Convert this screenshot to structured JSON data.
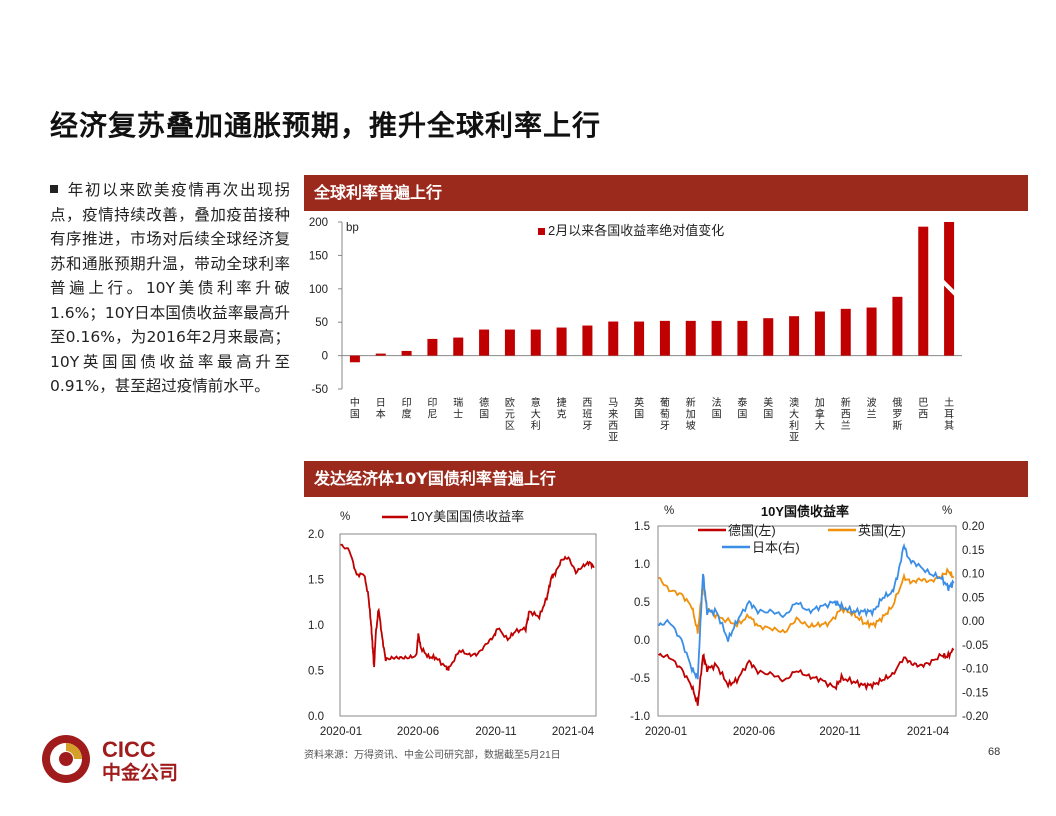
{
  "slide": {
    "title": "经济复苏叠加通胀预期，推升全球利率上行",
    "bullet": "年初以来欧美疫情再次出现拐点，疫情持续改善，叠加疫苗接种有序推进，市场对后续全球经济复苏和通胀预期升温，带动全球利率普遍上行。10Y美债利率升破1.6%；10Y日本国债收益率最高升至0.16%，为2016年2月来最高；10Y英国国债收益率最高升至0.91%，甚至超过疫情前水平。",
    "section1": "全球利率普遍上行",
    "section2": "发达经济体10Y国债利率普遍上行",
    "source": "资料来源：万得资讯、中金公司研究部，数据截至5月21日",
    "page_number": "68",
    "logo_text_en": "CICC",
    "logo_text_cn": "中金公司",
    "colors": {
      "band": "#9b2a1d",
      "bar": "#c00000",
      "de": "#c00000",
      "uk": "#f0900b",
      "jp": "#3a8ee6",
      "logo": "#a01c1c"
    }
  },
  "chart_data": [
    {
      "type": "bar",
      "unit": "bp",
      "legend": "2月以来各国收益率绝对值变化",
      "categories": [
        "中国",
        "日本",
        "印度",
        "印尼",
        "瑞士",
        "德国",
        "欧元区",
        "意大利",
        "捷克",
        "西班牙",
        "马来西亚",
        "英国",
        "葡萄牙",
        "新加坡",
        "法国",
        "泰国",
        "美国",
        "澳大利亚",
        "加拿大",
        "新西兰",
        "波兰",
        "俄罗斯",
        "巴西",
        "土耳其"
      ],
      "values": [
        -10,
        3,
        7,
        25,
        27,
        39,
        39,
        39,
        42,
        45,
        51,
        51,
        52,
        52,
        52,
        52,
        56,
        59,
        66,
        70,
        72,
        88,
        193,
        200
      ],
      "ylim": [
        -50,
        200
      ],
      "yticks": [
        -50,
        0,
        50,
        100,
        150,
        200
      ],
      "broken_bar": "土耳其"
    },
    {
      "type": "line",
      "unit": "%",
      "series": [
        {
          "name": "10Y美国国债收益率"
        }
      ],
      "ylim": [
        0,
        2
      ],
      "yticks": [
        "0.0",
        "0.5",
        "1.0",
        "1.5",
        "2.0"
      ],
      "xticks": [
        "2020-01",
        "2020-06",
        "2020-11",
        "2021-04"
      ],
      "points": [
        [
          "2020-01-02",
          1.88
        ],
        [
          "2020-01-20",
          1.82
        ],
        [
          "2020-02-03",
          1.55
        ],
        [
          "2020-02-18",
          1.56
        ],
        [
          "2020-02-27",
          1.3
        ],
        [
          "2020-03-03",
          1.0
        ],
        [
          "2020-03-06",
          0.77
        ],
        [
          "2020-03-09",
          0.54
        ],
        [
          "2020-03-12",
          0.88
        ],
        [
          "2020-03-18",
          1.18
        ],
        [
          "2020-03-25",
          0.86
        ],
        [
          "2020-04-01",
          0.62
        ],
        [
          "2020-04-15",
          0.64
        ],
        [
          "2020-04-30",
          0.64
        ],
        [
          "2020-05-15",
          0.64
        ],
        [
          "2020-06-01",
          0.66
        ],
        [
          "2020-06-05",
          0.9
        ],
        [
          "2020-06-10",
          0.75
        ],
        [
          "2020-06-25",
          0.65
        ],
        [
          "2020-07-10",
          0.64
        ],
        [
          "2020-07-31",
          0.53
        ],
        [
          "2020-08-05",
          0.52
        ],
        [
          "2020-08-26",
          0.72
        ],
        [
          "2020-09-15",
          0.67
        ],
        [
          "2020-10-01",
          0.68
        ],
        [
          "2020-10-20",
          0.8
        ],
        [
          "2020-11-03",
          0.88
        ],
        [
          "2020-11-10",
          0.97
        ],
        [
          "2020-11-30",
          0.84
        ],
        [
          "2020-12-15",
          0.93
        ],
        [
          "2021-01-05",
          0.96
        ],
        [
          "2021-01-12",
          1.15
        ],
        [
          "2021-02-01",
          1.09
        ],
        [
          "2021-02-16",
          1.3
        ],
        [
          "2021-02-25",
          1.52
        ],
        [
          "2021-03-05",
          1.57
        ],
        [
          "2021-03-18",
          1.72
        ],
        [
          "2021-03-31",
          1.74
        ],
        [
          "2021-04-15",
          1.58
        ],
        [
          "2021-04-30",
          1.65
        ],
        [
          "2021-05-12",
          1.69
        ],
        [
          "2021-05-21",
          1.63
        ]
      ]
    },
    {
      "type": "line",
      "title": "10Y国债收益率",
      "unit_left": "%",
      "unit_right": "%",
      "ylim_left": [
        -1.0,
        1.5
      ],
      "ylim_right": [
        -0.2,
        0.2
      ],
      "yticks_left": [
        "-1.0",
        "-0.5",
        "0.0",
        "0.5",
        "1.0",
        "1.5"
      ],
      "yticks_right": [
        "-0.20",
        "-0.15",
        "-0.10",
        "-0.05",
        "0.00",
        "0.05",
        "0.10",
        "0.15",
        "0.20"
      ],
      "xticks": [
        "2020-01",
        "2020-06",
        "2020-11",
        "2021-04"
      ],
      "series": [
        {
          "name": "德国(左)",
          "axis": "left",
          "points": [
            [
              "2020-01-02",
              -0.2
            ],
            [
              "2020-01-20",
              -0.22
            ],
            [
              "2020-02-10",
              -0.38
            ],
            [
              "2020-02-28",
              -0.61
            ],
            [
              "2020-03-09",
              -0.85
            ],
            [
              "2020-03-18",
              -0.2
            ],
            [
              "2020-03-25",
              -0.38
            ],
            [
              "2020-04-10",
              -0.33
            ],
            [
              "2020-04-30",
              -0.59
            ],
            [
              "2020-05-15",
              -0.53
            ],
            [
              "2020-06-05",
              -0.28
            ],
            [
              "2020-06-20",
              -0.42
            ],
            [
              "2020-07-15",
              -0.45
            ],
            [
              "2020-08-04",
              -0.54
            ],
            [
              "2020-08-25",
              -0.4
            ],
            [
              "2020-09-15",
              -0.48
            ],
            [
              "2020-10-05",
              -0.52
            ],
            [
              "2020-10-30",
              -0.63
            ],
            [
              "2020-11-10",
              -0.5
            ],
            [
              "2020-12-01",
              -0.55
            ],
            [
              "2020-12-20",
              -0.6
            ],
            [
              "2021-01-04",
              -0.59
            ],
            [
              "2021-01-20",
              -0.52
            ],
            [
              "2021-02-05",
              -0.46
            ],
            [
              "2021-02-25",
              -0.23
            ],
            [
              "2021-03-10",
              -0.31
            ],
            [
              "2021-03-25",
              -0.34
            ],
            [
              "2021-04-10",
              -0.3
            ],
            [
              "2021-04-30",
              -0.2
            ],
            [
              "2021-05-10",
              -0.22
            ],
            [
              "2021-05-21",
              -0.13
            ]
          ]
        },
        {
          "name": "英国(左)",
          "axis": "left",
          "points": [
            [
              "2020-01-02",
              0.82
            ],
            [
              "2020-01-20",
              0.66
            ],
            [
              "2020-02-10",
              0.6
            ],
            [
              "2020-02-28",
              0.44
            ],
            [
              "2020-03-09",
              0.1
            ],
            [
              "2020-03-18",
              0.75
            ],
            [
              "2020-03-25",
              0.4
            ],
            [
              "2020-04-15",
              0.3
            ],
            [
              "2020-05-15",
              0.2
            ],
            [
              "2020-06-05",
              0.32
            ],
            [
              "2020-06-20",
              0.18
            ],
            [
              "2020-07-15",
              0.15
            ],
            [
              "2020-08-05",
              0.1
            ],
            [
              "2020-08-25",
              0.28
            ],
            [
              "2020-09-15",
              0.18
            ],
            [
              "2020-10-01",
              0.2
            ],
            [
              "2020-10-20",
              0.22
            ],
            [
              "2020-11-10",
              0.41
            ],
            [
              "2020-12-01",
              0.34
            ],
            [
              "2020-12-20",
              0.22
            ],
            [
              "2021-01-04",
              0.2
            ],
            [
              "2021-01-20",
              0.3
            ],
            [
              "2021-02-05",
              0.44
            ],
            [
              "2021-02-25",
              0.82
            ],
            [
              "2021-03-10",
              0.76
            ],
            [
              "2021-03-25",
              0.8
            ],
            [
              "2021-04-10",
              0.77
            ],
            [
              "2021-04-30",
              0.84
            ],
            [
              "2021-05-12",
              0.91
            ],
            [
              "2021-05-21",
              0.82
            ]
          ]
        },
        {
          "name": "日本(右)",
          "axis": "right",
          "points": [
            [
              "2020-01-02",
              -0.01
            ],
            [
              "2020-01-20",
              0.0
            ],
            [
              "2020-02-10",
              -0.04
            ],
            [
              "2020-02-28",
              -0.1
            ],
            [
              "2020-03-09",
              -0.12
            ],
            [
              "2020-03-18",
              0.1
            ],
            [
              "2020-03-25",
              0.02
            ],
            [
              "2020-04-10",
              0.02
            ],
            [
              "2020-04-30",
              -0.04
            ],
            [
              "2020-05-15",
              0.0
            ],
            [
              "2020-06-05",
              0.04
            ],
            [
              "2020-06-20",
              0.02
            ],
            [
              "2020-07-15",
              0.02
            ],
            [
              "2020-08-05",
              0.01
            ],
            [
              "2020-08-25",
              0.04
            ],
            [
              "2020-09-15",
              0.02
            ],
            [
              "2020-10-05",
              0.03
            ],
            [
              "2020-10-30",
              0.04
            ],
            [
              "2020-11-10",
              0.03
            ],
            [
              "2020-12-01",
              0.02
            ],
            [
              "2020-12-20",
              0.02
            ],
            [
              "2021-01-04",
              0.02
            ],
            [
              "2021-01-20",
              0.05
            ],
            [
              "2021-02-05",
              0.06
            ],
            [
              "2021-02-15",
              0.1
            ],
            [
              "2021-02-25",
              0.16
            ],
            [
              "2021-03-05",
              0.13
            ],
            [
              "2021-03-18",
              0.12
            ],
            [
              "2021-04-10",
              0.1
            ],
            [
              "2021-04-30",
              0.09
            ],
            [
              "2021-05-12",
              0.07
            ],
            [
              "2021-05-21",
              0.08
            ]
          ]
        }
      ]
    }
  ]
}
